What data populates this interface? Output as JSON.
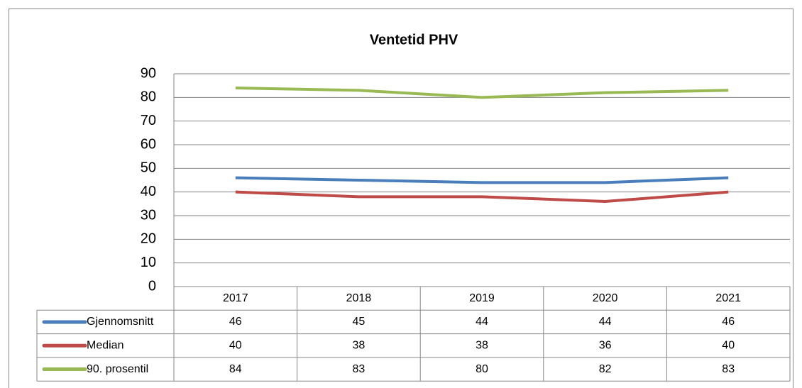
{
  "chart_data": {
    "type": "line",
    "title": "Ventetid PHV",
    "categories": [
      "2017",
      "2018",
      "2019",
      "2020",
      "2021"
    ],
    "series": [
      {
        "name": "Gjennomsnitt",
        "color": "#4a7ebb",
        "values": [
          46,
          45,
          44,
          44,
          46
        ]
      },
      {
        "name": "Median",
        "color": "#be4b48",
        "values": [
          40,
          38,
          38,
          36,
          40
        ]
      },
      {
        "name": "90. prosentil",
        "color": "#98b954",
        "values": [
          84,
          83,
          80,
          82,
          83
        ]
      }
    ],
    "ylim": [
      0,
      90
    ],
    "yticks": [
      0,
      10,
      20,
      30,
      40,
      50,
      60,
      70,
      80,
      90
    ],
    "grid": true,
    "data_table": true
  }
}
